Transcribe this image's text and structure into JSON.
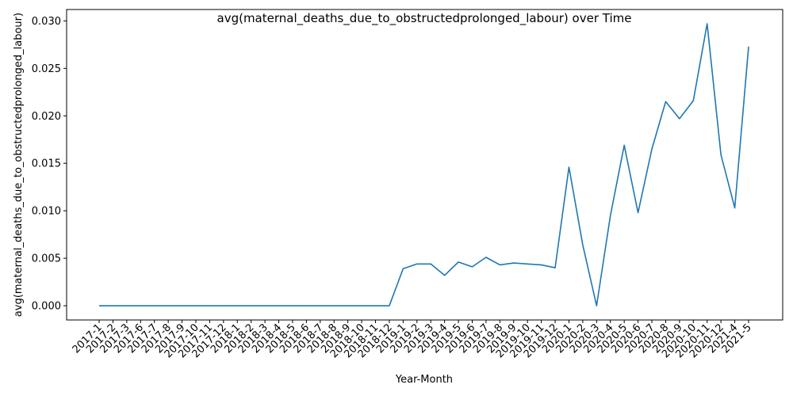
{
  "chart_data": {
    "type": "line",
    "title": "avg(maternal_deaths_due_to_obstructedprolonged_labour) over Time",
    "xlabel": "Year-Month",
    "ylabel": "avg(maternal_deaths_due_to_obstructedprolonged_labour)",
    "ylim": [
      -0.0015,
      0.0312
    ],
    "yticks": [
      "0.000",
      "0.005",
      "0.010",
      "0.015",
      "0.020",
      "0.025",
      "0.030"
    ],
    "ytick_values": [
      0,
      0.005,
      0.01,
      0.015,
      0.02,
      0.025,
      0.03
    ],
    "grid": false,
    "line_color": "#1f77b4",
    "x": [
      "2017-1",
      "2017-2",
      "2017-3",
      "2017-6",
      "2017-7",
      "2017-8",
      "2017-9",
      "2017-10",
      "2017-11",
      "2017-12",
      "2018-1",
      "2018-2",
      "2018-3",
      "2018-4",
      "2018-5",
      "2018-6",
      "2018-7",
      "2018-8",
      "2018-9",
      "2018-10",
      "2018-11",
      "2018-12",
      "2019-1",
      "2019-2",
      "2019-3",
      "2019-4",
      "2019-5",
      "2019-6",
      "2019-7",
      "2019-8",
      "2019-9",
      "2019-10",
      "2019-11",
      "2019-12",
      "2020-1",
      "2020-2",
      "2020-3",
      "2020-4",
      "2020-5",
      "2020-6",
      "2020-7",
      "2020-8",
      "2020-9",
      "2020-10",
      "2020-11",
      "2020-12",
      "2021-4",
      "2021-5"
    ],
    "series": [
      {
        "values": [
          0,
          0,
          0,
          0,
          0,
          0,
          0,
          0,
          0,
          0,
          0,
          0,
          0,
          0,
          0,
          0,
          0,
          0,
          0,
          0,
          0,
          0,
          0.0039,
          0.0044,
          0.0044,
          0.0032,
          0.0046,
          0.0041,
          0.0051,
          0.0043,
          0.0045,
          0.0044,
          0.0043,
          0.004,
          0.0146,
          0.0064,
          0.0,
          0.0095,
          0.0169,
          0.0098,
          0.0165,
          0.0215,
          0.0197,
          0.0216,
          0.0297,
          0.0159,
          0.0103,
          0.0273
        ]
      }
    ]
  }
}
